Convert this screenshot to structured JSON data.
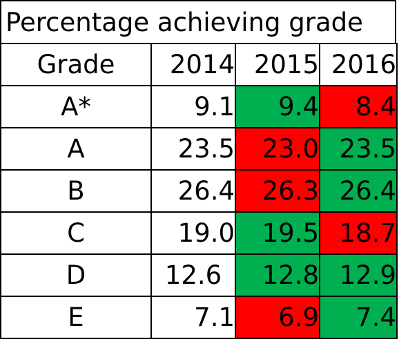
{
  "title": "Percentage achieving grade",
  "colors": {
    "increase": "#00b050",
    "decrease": "#ff0000",
    "neutral": "#ffffff"
  },
  "chart_data": {
    "type": "table",
    "title": "Percentage achieving grade",
    "columns": [
      "Grade",
      "2014",
      "2015",
      "2016"
    ],
    "rows": [
      {
        "grade": "A*",
        "values": [
          "9.1",
          "9.4",
          "8.4"
        ],
        "fills": [
          "neutral",
          "increase",
          "decrease"
        ]
      },
      {
        "grade": "A",
        "values": [
          "23.5",
          "23.0",
          "23.5"
        ],
        "fills": [
          "neutral",
          "decrease",
          "increase"
        ]
      },
      {
        "grade": "B",
        "values": [
          "26.4",
          "26.3",
          "26.4"
        ],
        "fills": [
          "neutral",
          "decrease",
          "increase"
        ]
      },
      {
        "grade": "C",
        "values": [
          "19.0",
          "19.5",
          "18.7"
        ],
        "fills": [
          "neutral",
          "increase",
          "decrease"
        ]
      },
      {
        "grade": "D",
        "values": [
          "12.6",
          "12.8",
          "12.9"
        ],
        "fills": [
          "neutral",
          "increase",
          "increase"
        ]
      },
      {
        "grade": "E",
        "values": [
          "7.1",
          "6.9",
          "7.4"
        ],
        "fills": [
          "neutral",
          "decrease",
          "increase"
        ]
      }
    ]
  }
}
